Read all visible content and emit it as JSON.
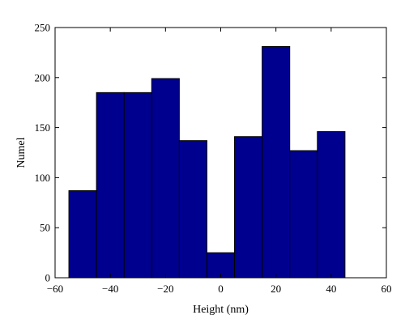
{
  "chart_data": {
    "type": "bar",
    "bar_style": "histogram",
    "bins": [
      {
        "x0": -55,
        "x1": -45,
        "value": 87
      },
      {
        "x0": -45,
        "x1": -35,
        "value": 185
      },
      {
        "x0": -35,
        "x1": -25,
        "value": 185
      },
      {
        "x0": -25,
        "x1": -15,
        "value": 199
      },
      {
        "x0": -15,
        "x1": -5,
        "value": 137
      },
      {
        "x0": -5,
        "x1": 5,
        "value": 25
      },
      {
        "x0": 5,
        "x1": 15,
        "value": 141
      },
      {
        "x0": 15,
        "x1": 25,
        "value": 231
      },
      {
        "x0": 25,
        "x1": 35,
        "value": 127
      },
      {
        "x0": 35,
        "x1": 45,
        "value": 146
      }
    ],
    "xlabel": "Height (nm)",
    "ylabel": "Numel",
    "xlim": [
      -60,
      60
    ],
    "ylim": [
      0,
      250
    ],
    "xticks": [
      "−60",
      "−40",
      "−20",
      "0",
      "20",
      "40",
      "60"
    ],
    "xtick_values": [
      -60,
      -40,
      -20,
      0,
      20,
      40,
      60
    ],
    "yticks": [
      "0",
      "50",
      "100",
      "150",
      "200",
      "250"
    ],
    "ytick_values": [
      0,
      50,
      100,
      150,
      200,
      250
    ],
    "grid": false,
    "colors": {
      "bar_fill": "#00008f",
      "bar_edge": "#000000",
      "axis": "#000000"
    }
  }
}
